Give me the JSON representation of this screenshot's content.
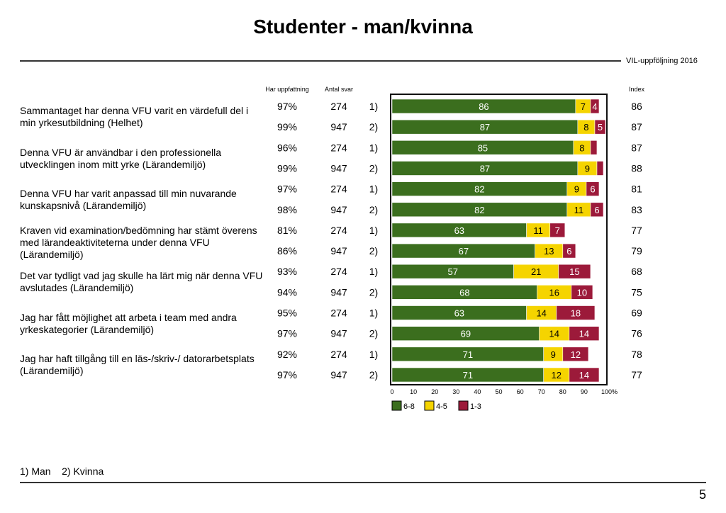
{
  "page": {
    "title": "Studenter - man/kvinna",
    "subtitle_right": "VIL-uppföljning 2016",
    "footnote": "1) Man    2) Kvinna",
    "page_number": "5"
  },
  "headers": {
    "har_uppfattning": "Har uppfattning",
    "antal_svar": "Antal svar",
    "index": "Index"
  },
  "colors": {
    "6-8": "#3b6e1e",
    "4-5": "#f5d400",
    "1-3": "#9c1a3a",
    "frame": "#111111"
  },
  "chart_data": {
    "type": "bar",
    "orientation": "horizontal",
    "stacked": true,
    "xlim": [
      0,
      100
    ],
    "x_ticks": [
      "0",
      "10",
      "20",
      "30",
      "40",
      "50",
      "60",
      "70",
      "80",
      "90",
      "100%"
    ],
    "legend": [
      "6-8",
      "4-5",
      "1-3"
    ],
    "legend_position": "bottom",
    "group_codes": [
      "1)",
      "2)"
    ],
    "questions": [
      {
        "label": "Sammantaget har denna VFU varit en värdefull del i min yrkesutbildning (Helhet)",
        "rows": [
          {
            "group": "1)",
            "har_uppfattning": "97%",
            "antal_svar": "274",
            "values": [
              86,
              7,
              4
            ],
            "labels": [
              "86",
              "7",
              "4"
            ],
            "index": "86"
          },
          {
            "group": "2)",
            "har_uppfattning": "99%",
            "antal_svar": "947",
            "values": [
              87,
              8,
              5
            ],
            "labels": [
              "87",
              "8",
              "5"
            ],
            "index": "87"
          }
        ]
      },
      {
        "label": "Denna VFU är användbar i den professionella utvecklingen inom mitt yrke (Lärandemiljö)",
        "rows": [
          {
            "group": "1)",
            "har_uppfattning": "96%",
            "antal_svar": "274",
            "values": [
              85,
              8,
              3
            ],
            "labels": [
              "85",
              "8",
              ""
            ],
            "index": "87"
          },
          {
            "group": "2)",
            "har_uppfattning": "99%",
            "antal_svar": "947",
            "values": [
              87,
              9,
              3
            ],
            "labels": [
              "87",
              "9",
              ""
            ],
            "index": "88"
          }
        ]
      },
      {
        "label": "Denna VFU har varit anpassad till min nuvarande kunskapsnivå (Lärandemiljö)",
        "rows": [
          {
            "group": "1)",
            "har_uppfattning": "97%",
            "antal_svar": "274",
            "values": [
              82,
              9,
              6
            ],
            "labels": [
              "82",
              "9",
              "6"
            ],
            "index": "81"
          },
          {
            "group": "2)",
            "har_uppfattning": "98%",
            "antal_svar": "947",
            "values": [
              82,
              11,
              6
            ],
            "labels": [
              "82",
              "11",
              "6"
            ],
            "index": "83"
          }
        ]
      },
      {
        "label": "Kraven vid examination/bedömning har stämt överens med lärandeaktiviteterna under denna VFU (Lärandemiljö)",
        "rows": [
          {
            "group": "1)",
            "har_uppfattning": "81%",
            "antal_svar": "274",
            "values": [
              63,
              11,
              7
            ],
            "labels": [
              "63",
              "11",
              "7"
            ],
            "index": "77"
          },
          {
            "group": "2)",
            "har_uppfattning": "86%",
            "antal_svar": "947",
            "values": [
              67,
              13,
              6
            ],
            "labels": [
              "67",
              "13",
              "6"
            ],
            "index": "79"
          }
        ]
      },
      {
        "label": "Det var tydligt vad jag skulle ha lärt mig när denna VFU avslutades (Lärandemiljö)",
        "rows": [
          {
            "group": "1)",
            "har_uppfattning": "93%",
            "antal_svar": "274",
            "values": [
              57,
              21,
              15
            ],
            "labels": [
              "57",
              "21",
              "15"
            ],
            "index": "68"
          },
          {
            "group": "2)",
            "har_uppfattning": "94%",
            "antal_svar": "947",
            "values": [
              68,
              16,
              10
            ],
            "labels": [
              "68",
              "16",
              "10"
            ],
            "index": "75"
          }
        ]
      },
      {
        "label": "Jag har fått möjlighet att arbeta i team med andra yrkeskategorier (Lärandemiljö)",
        "rows": [
          {
            "group": "1)",
            "har_uppfattning": "95%",
            "antal_svar": "274",
            "values": [
              63,
              14,
              18
            ],
            "labels": [
              "63",
              "14",
              "18"
            ],
            "index": "69"
          },
          {
            "group": "2)",
            "har_uppfattning": "97%",
            "antal_svar": "947",
            "values": [
              69,
              14,
              14
            ],
            "labels": [
              "69",
              "14",
              "14"
            ],
            "index": "76"
          }
        ]
      },
      {
        "label": "Jag har haft tillgång till en läs-/skriv-/ datorarbetsplats (Lärandemiljö)",
        "rows": [
          {
            "group": "1)",
            "har_uppfattning": "92%",
            "antal_svar": "274",
            "values": [
              71,
              9,
              12
            ],
            "labels": [
              "71",
              "9",
              "12"
            ],
            "index": "78"
          },
          {
            "group": "2)",
            "har_uppfattning": "97%",
            "antal_svar": "947",
            "values": [
              71,
              12,
              14
            ],
            "labels": [
              "71",
              "12",
              "14"
            ],
            "index": "77"
          }
        ]
      }
    ]
  }
}
